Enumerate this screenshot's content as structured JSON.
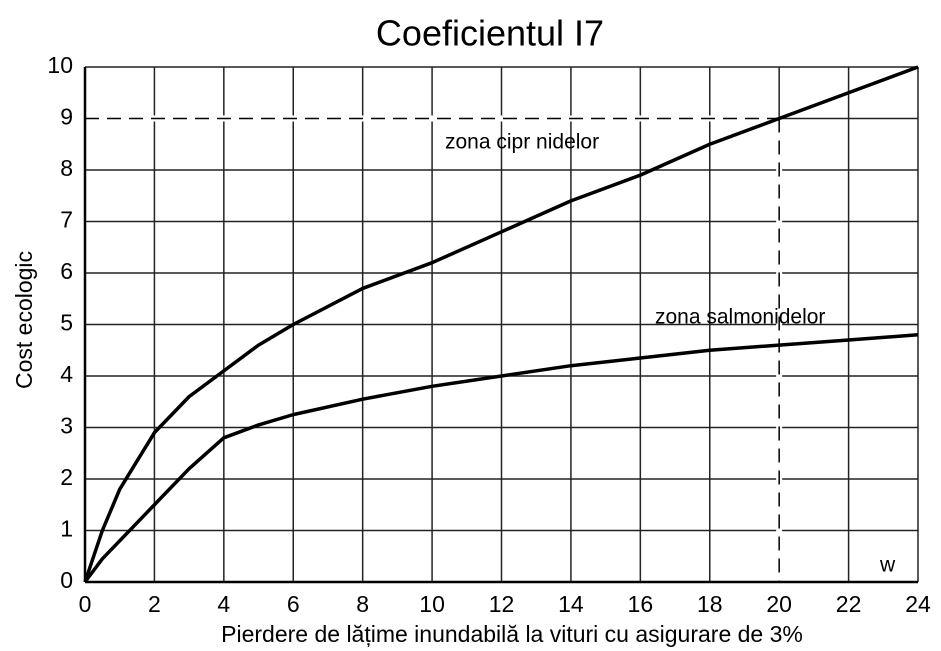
{
  "chart_data": {
    "type": "line",
    "title": "Coeficientul  I7",
    "x_label": "Pierdere de lățime inundabilă la vituri cu asigurare de 3%",
    "y_label": "Cost ecologic",
    "annotation": "w",
    "color": "#000000",
    "grid": true,
    "xlim": [
      0,
      24
    ],
    "ylim": [
      0,
      10
    ],
    "xticks": [
      0,
      2,
      4,
      6,
      8,
      10,
      12,
      14,
      16,
      18,
      20,
      22,
      24
    ],
    "yticks": [
      0,
      1,
      2,
      3,
      4,
      5,
      6,
      7,
      8,
      9,
      10
    ],
    "reference": {
      "x": 20,
      "y": 9
    },
    "x": [
      0,
      0.5,
      1,
      2,
      3,
      4,
      5,
      6,
      8,
      10,
      12,
      14,
      16,
      18,
      20,
      22,
      24
    ],
    "series": [
      {
        "name": "zona cipr nidelor",
        "color": "#000000",
        "values": [
          0,
          1.0,
          1.8,
          2.9,
          3.6,
          4.1,
          4.6,
          5.0,
          5.7,
          6.2,
          6.8,
          7.4,
          7.9,
          8.5,
          9.0,
          9.5,
          10
        ]
      },
      {
        "name": "zona salmonidelor",
        "color": "#000000",
        "values": [
          0,
          0.45,
          0.8,
          1.5,
          2.2,
          2.8,
          3.05,
          3.25,
          3.55,
          3.8,
          4.0,
          4.2,
          4.35,
          4.5,
          4.6,
          4.7,
          4.8
        ]
      }
    ]
  }
}
